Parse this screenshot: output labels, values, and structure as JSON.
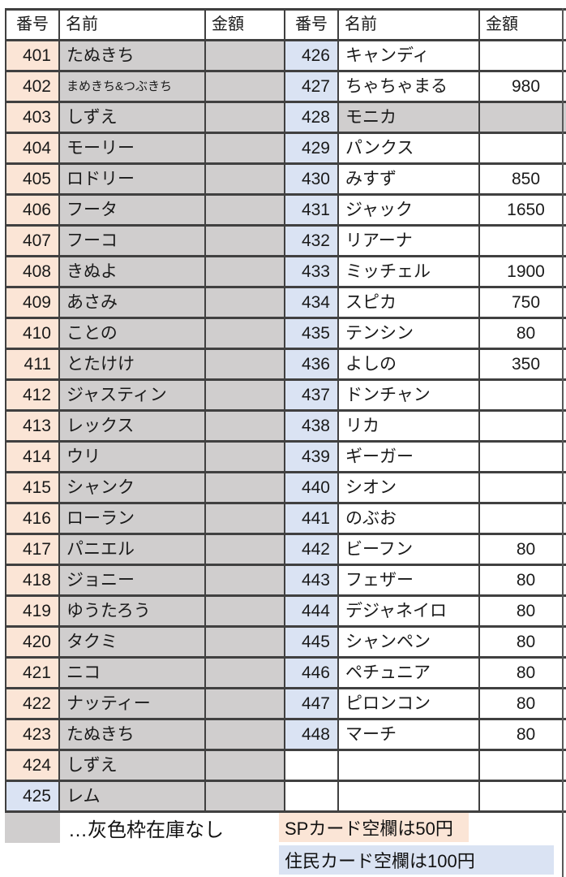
{
  "colors": {
    "no_stock_gray": "#d0cece",
    "sp_number_peach": "#fbe5d6",
    "resident_number_blue": "#dae3f3",
    "grid_border": "#404040"
  },
  "left_table": {
    "headers": [
      "番号",
      "名前",
      "金額"
    ],
    "rows": [
      {
        "no": "401",
        "name": "たぬきち",
        "price": "",
        "no_stock": true,
        "num_color": "peach",
        "small": false
      },
      {
        "no": "402",
        "name": "まめきち&つぶきち",
        "price": "",
        "no_stock": true,
        "num_color": "peach",
        "small": true
      },
      {
        "no": "403",
        "name": "しずえ",
        "price": "",
        "no_stock": true,
        "num_color": "peach",
        "small": false
      },
      {
        "no": "404",
        "name": "モーリー",
        "price": "",
        "no_stock": true,
        "num_color": "peach",
        "small": false
      },
      {
        "no": "405",
        "name": "ロドリー",
        "price": "",
        "no_stock": true,
        "num_color": "peach",
        "small": false
      },
      {
        "no": "406",
        "name": "フータ",
        "price": "",
        "no_stock": true,
        "num_color": "peach",
        "small": false
      },
      {
        "no": "407",
        "name": "フーコ",
        "price": "",
        "no_stock": true,
        "num_color": "peach",
        "small": false
      },
      {
        "no": "408",
        "name": "きぬよ",
        "price": "",
        "no_stock": true,
        "num_color": "peach",
        "small": false
      },
      {
        "no": "409",
        "name": "あさみ",
        "price": "",
        "no_stock": true,
        "num_color": "peach",
        "small": false
      },
      {
        "no": "410",
        "name": "ことの",
        "price": "",
        "no_stock": true,
        "num_color": "peach",
        "small": false
      },
      {
        "no": "411",
        "name": "とたけけ",
        "price": "",
        "no_stock": true,
        "num_color": "peach",
        "small": false
      },
      {
        "no": "412",
        "name": "ジャスティン",
        "price": "",
        "no_stock": true,
        "num_color": "peach",
        "small": false
      },
      {
        "no": "413",
        "name": "レックス",
        "price": "",
        "no_stock": true,
        "num_color": "peach",
        "small": false
      },
      {
        "no": "414",
        "name": "ウリ",
        "price": "",
        "no_stock": true,
        "num_color": "peach",
        "small": false
      },
      {
        "no": "415",
        "name": "シャンク",
        "price": "",
        "no_stock": true,
        "num_color": "peach",
        "small": false
      },
      {
        "no": "416",
        "name": "ローラン",
        "price": "",
        "no_stock": true,
        "num_color": "peach",
        "small": false
      },
      {
        "no": "417",
        "name": "パニエル",
        "price": "",
        "no_stock": true,
        "num_color": "peach",
        "small": false
      },
      {
        "no": "418",
        "name": "ジョニー",
        "price": "",
        "no_stock": true,
        "num_color": "peach",
        "small": false
      },
      {
        "no": "419",
        "name": "ゆうたろう",
        "price": "",
        "no_stock": true,
        "num_color": "peach",
        "small": false
      },
      {
        "no": "420",
        "name": "タクミ",
        "price": "",
        "no_stock": true,
        "num_color": "peach",
        "small": false
      },
      {
        "no": "421",
        "name": "ニコ",
        "price": "",
        "no_stock": true,
        "num_color": "peach",
        "small": false
      },
      {
        "no": "422",
        "name": "ナッティー",
        "price": "",
        "no_stock": true,
        "num_color": "peach",
        "small": false
      },
      {
        "no": "423",
        "name": "たぬきち",
        "price": "",
        "no_stock": true,
        "num_color": "peach",
        "small": false
      },
      {
        "no": "424",
        "name": "しずえ",
        "price": "",
        "no_stock": true,
        "num_color": "peach",
        "small": false
      },
      {
        "no": "425",
        "name": "レム",
        "price": "",
        "no_stock": true,
        "num_color": "blue",
        "small": false
      }
    ]
  },
  "right_table": {
    "headers": [
      "番号",
      "名前",
      "金額"
    ],
    "rows": [
      {
        "no": "426",
        "name": "キャンディ",
        "price": "",
        "no_stock": false,
        "num_color": "blue",
        "small": false
      },
      {
        "no": "427",
        "name": "ちゃちゃまる",
        "price": "980",
        "no_stock": false,
        "num_color": "blue",
        "small": false
      },
      {
        "no": "428",
        "name": "モニカ",
        "price": "",
        "no_stock": true,
        "num_color": "blue",
        "small": false
      },
      {
        "no": "429",
        "name": "パンクス",
        "price": "",
        "no_stock": false,
        "num_color": "blue",
        "small": false
      },
      {
        "no": "430",
        "name": "みすず",
        "price": "850",
        "no_stock": false,
        "num_color": "blue",
        "small": false
      },
      {
        "no": "431",
        "name": "ジャック",
        "price": "1650",
        "no_stock": false,
        "num_color": "blue",
        "small": false
      },
      {
        "no": "432",
        "name": "リアーナ",
        "price": "",
        "no_stock": false,
        "num_color": "blue",
        "small": false
      },
      {
        "no": "433",
        "name": "ミッチェル",
        "price": "1900",
        "no_stock": false,
        "num_color": "blue",
        "small": false
      },
      {
        "no": "434",
        "name": "スピカ",
        "price": "750",
        "no_stock": false,
        "num_color": "blue",
        "small": false
      },
      {
        "no": "435",
        "name": "テンシン",
        "price": "80",
        "no_stock": false,
        "num_color": "blue",
        "small": false
      },
      {
        "no": "436",
        "name": "よしの",
        "price": "350",
        "no_stock": false,
        "num_color": "blue",
        "small": false
      },
      {
        "no": "437",
        "name": "ドンチャン",
        "price": "",
        "no_stock": false,
        "num_color": "blue",
        "small": false
      },
      {
        "no": "438",
        "name": "リカ",
        "price": "",
        "no_stock": false,
        "num_color": "blue",
        "small": false
      },
      {
        "no": "439",
        "name": "ギーガー",
        "price": "",
        "no_stock": false,
        "num_color": "blue",
        "small": false
      },
      {
        "no": "440",
        "name": "シオン",
        "price": "",
        "no_stock": false,
        "num_color": "blue",
        "small": false
      },
      {
        "no": "441",
        "name": "のぶお",
        "price": "",
        "no_stock": false,
        "num_color": "blue",
        "small": false
      },
      {
        "no": "442",
        "name": "ビーフン",
        "price": "80",
        "no_stock": false,
        "num_color": "blue",
        "small": false
      },
      {
        "no": "443",
        "name": "フェザー",
        "price": "80",
        "no_stock": false,
        "num_color": "blue",
        "small": false
      },
      {
        "no": "444",
        "name": "デジャネイロ",
        "price": "80",
        "no_stock": false,
        "num_color": "blue",
        "small": false
      },
      {
        "no": "445",
        "name": "シャンペン",
        "price": "80",
        "no_stock": false,
        "num_color": "blue",
        "small": false
      },
      {
        "no": "446",
        "name": "ペチュニア",
        "price": "80",
        "no_stock": false,
        "num_color": "blue",
        "small": false
      },
      {
        "no": "447",
        "name": "ピロンコン",
        "price": "80",
        "no_stock": false,
        "num_color": "blue",
        "small": false
      },
      {
        "no": "448",
        "name": "マーチ",
        "price": "80",
        "no_stock": false,
        "num_color": "blue",
        "small": false
      },
      {
        "no": "",
        "name": "",
        "price": "",
        "no_stock": false,
        "num_color": "none",
        "small": false
      },
      {
        "no": "",
        "name": "",
        "price": "",
        "no_stock": false,
        "num_color": "none",
        "small": false
      }
    ]
  },
  "legend": {
    "gray_note": "…灰色枠在庫なし",
    "sp_note": "SPカード空欄は50円",
    "resident_note": "住民カード空欄は100円"
  }
}
